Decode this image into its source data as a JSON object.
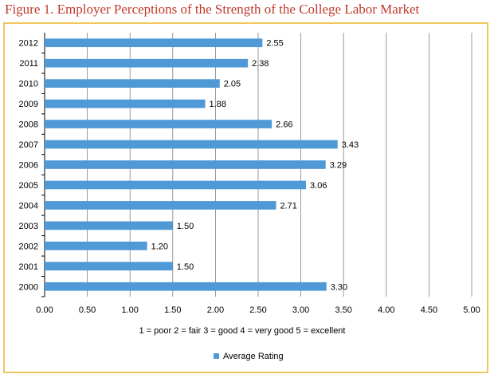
{
  "title": "Figure 1. Employer Perceptions of the Strength of the College Labor Market",
  "colors": {
    "title": "#c0392b",
    "frame": "#f0c75e",
    "bar": "#4f9ad6",
    "grid": "#808080"
  },
  "chart_data": {
    "type": "bar",
    "orientation": "horizontal",
    "categories": [
      "2012",
      "2011",
      "2010",
      "2009",
      "2008",
      "2007",
      "2006",
      "2005",
      "2004",
      "2003",
      "2002",
      "2001",
      "2000"
    ],
    "series": [
      {
        "name": "Average Rating",
        "values": [
          2.55,
          2.38,
          2.05,
          1.88,
          2.66,
          3.43,
          3.29,
          3.06,
          2.71,
          1.5,
          1.2,
          1.5,
          3.3
        ]
      }
    ],
    "data_labels": [
      "2.55",
      "2.38",
      "2.05",
      "1.88",
      "2.66",
      "3.43",
      "3.29",
      "3.06",
      "2.71",
      "1.50",
      "1.20",
      "1.50",
      "3.30"
    ],
    "xlim": [
      0,
      5
    ],
    "x_ticks": [
      "0.00",
      "0.50",
      "1.00",
      "1.50",
      "2.00",
      "2.50",
      "3.00",
      "3.50",
      "4.00",
      "4.50",
      "5.00"
    ],
    "scale_note": "1 = poor   2 = fair   3 = good   4 = very good   5 = excellent",
    "legend": {
      "label": "Average Rating",
      "placement": "bottom"
    },
    "grid": true
  }
}
